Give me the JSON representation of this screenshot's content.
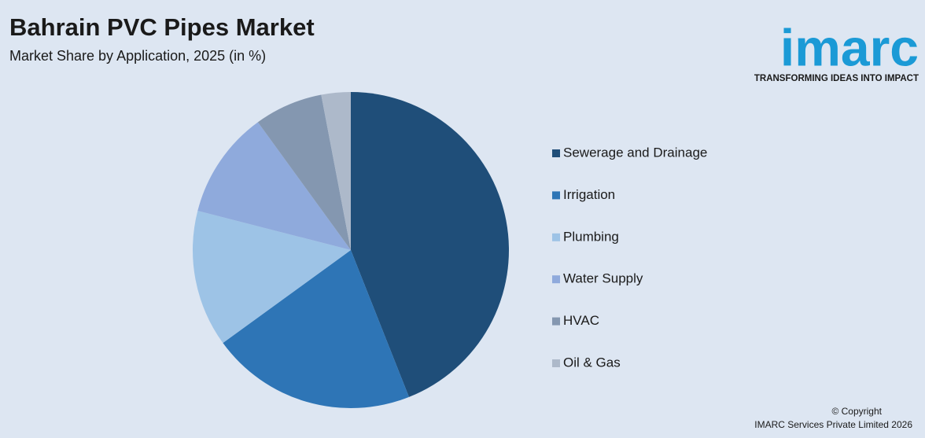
{
  "chart_data": {
    "type": "pie",
    "title": "Bahrain PVC Pipes Market",
    "subtitle": "Market Share by Application, 2025 (in %)",
    "categories": [
      "Sewerage and Drainage",
      "Irrigation",
      "Plumbing",
      "Water Supply",
      "HVAC",
      "Oil & Gas"
    ],
    "values": [
      44,
      21,
      14,
      11,
      7,
      3
    ],
    "colors": [
      "#1f4e79",
      "#2e75b6",
      "#9dc3e6",
      "#8faadc",
      "#8497b0",
      "#adb9ca"
    ],
    "legend": "right"
  },
  "logo": {
    "name": "imarc",
    "tagline": "TRANSFORMING IDEAS INTO IMPACT"
  },
  "footer": {
    "copyright": "© Copyright",
    "company": "IMARC Services Private Limited 2026"
  }
}
